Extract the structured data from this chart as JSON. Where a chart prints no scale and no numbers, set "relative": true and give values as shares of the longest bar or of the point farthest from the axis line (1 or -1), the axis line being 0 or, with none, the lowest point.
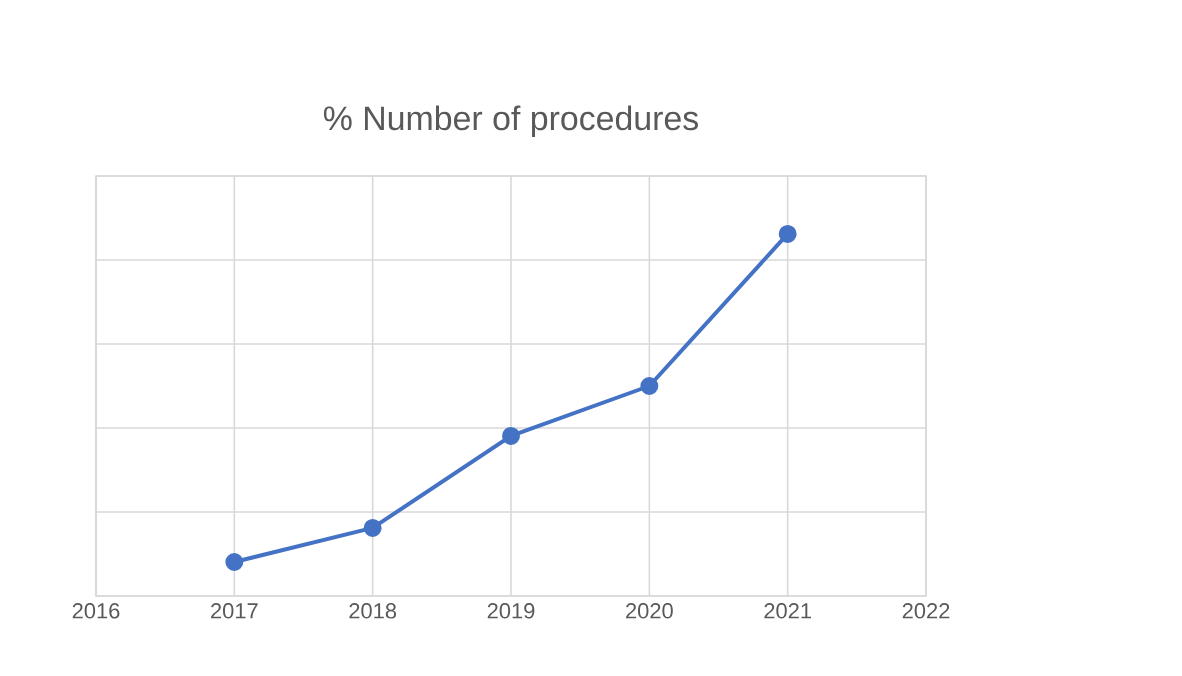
{
  "chart_data": {
    "type": "line",
    "title": "% Number of procedures",
    "relative": true,
    "x": [
      2017,
      2018,
      2019,
      2020,
      2021
    ],
    "values": [
      0.094,
      0.188,
      0.442,
      0.58,
      1.0
    ],
    "color": "#4472c4",
    "xlim": [
      2016,
      2022
    ],
    "xticks": [
      2016,
      2017,
      2018,
      2019,
      2020,
      2021,
      2022
    ],
    "grid": true,
    "marker": "circle",
    "line_style": "solid"
  }
}
